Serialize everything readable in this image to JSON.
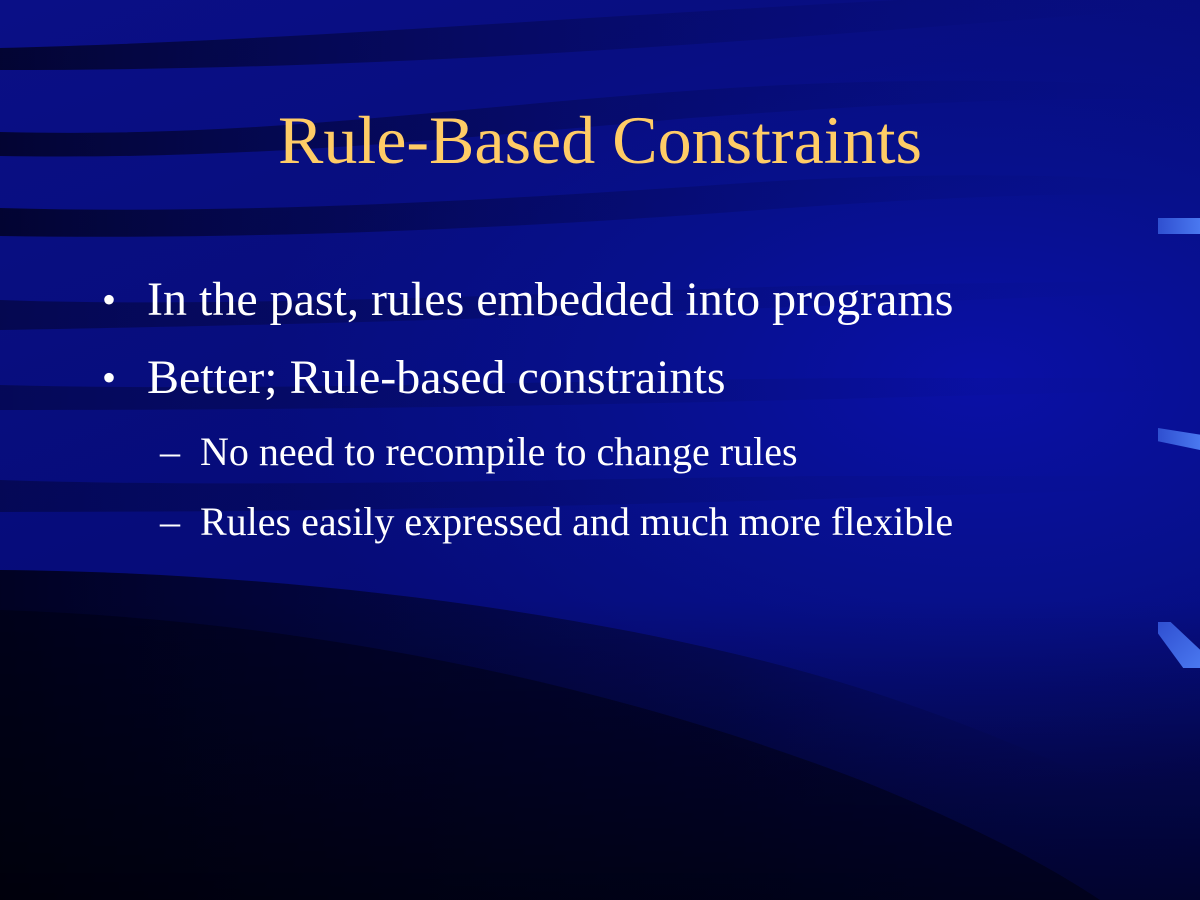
{
  "slide": {
    "title": "Rule-Based Constraints",
    "bullets": [
      {
        "marker": "•",
        "text": "In the past, rules embedded into programs"
      },
      {
        "marker": "•",
        "text": "Better; Rule-based constraints",
        "sub": [
          {
            "marker": "–",
            "text": "No need to recompile to change rules"
          },
          {
            "marker": "–",
            "text": "Rules easily expressed and much more flexible"
          }
        ]
      }
    ]
  },
  "colors": {
    "background": "#050a73",
    "title": "#ffcc66",
    "body_text": "#ffffff",
    "accent_tick": "#3b5ee0"
  }
}
